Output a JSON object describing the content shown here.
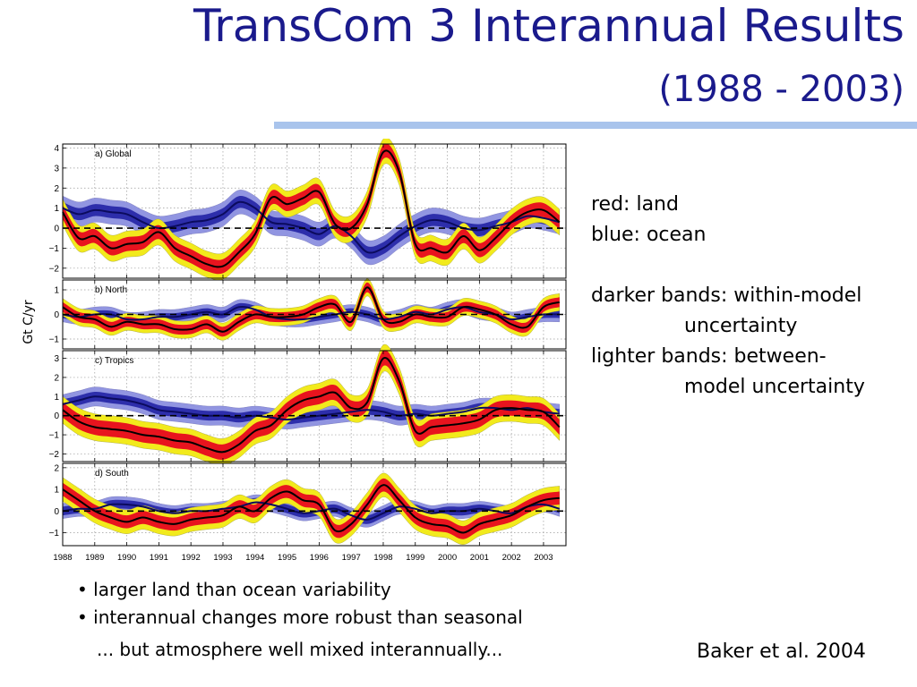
{
  "title": "TransCom 3 Interannual Results",
  "subtitle": "(1988 - 2003)",
  "ylabel": "Gt C/yr",
  "notes": {
    "red": "red: land",
    "blue": "blue: ocean",
    "darker_1": "darker bands: within-model",
    "darker_2": "uncertainty",
    "lighter_1": "lighter bands: between-",
    "lighter_2": "model uncertainty"
  },
  "bullets": [
    "• larger land than ocean variability",
    "• interannual changes more robust than seasonal"
  ],
  "footnote": "... but atmosphere well mixed interannually...",
  "citation": "Baker et al. 2004",
  "colors": {
    "land_line": "#000000",
    "land_inner": "#e8141e",
    "land_outer": "#f2ea1c",
    "ocean_line": "#0b0b5e",
    "ocean_inner": "#2828a8",
    "ocean_outer": "#8c90e0",
    "title": "#1a1a8c"
  },
  "chart_data": {
    "type": "line",
    "x_ticks": [
      "1988",
      "1989",
      "1990",
      "1991",
      "1992",
      "1993",
      "1994",
      "1995",
      "1996",
      "1997",
      "1998",
      "1999",
      "2000",
      "2001",
      "2002",
      "2003"
    ],
    "xlim": [
      1988,
      2003.7
    ],
    "grid": true,
    "x": [
      1988.0,
      1988.5,
      1989.0,
      1989.5,
      1990.0,
      1990.5,
      1991.0,
      1991.5,
      1992.0,
      1992.5,
      1993.0,
      1993.5,
      1994.0,
      1994.5,
      1995.0,
      1995.5,
      1996.0,
      1996.5,
      1997.0,
      1997.5,
      1998.0,
      1998.5,
      1999.0,
      1999.5,
      2000.0,
      2000.5,
      2001.0,
      2001.5,
      2002.0,
      2002.5,
      2003.0,
      2003.5
    ],
    "panels": [
      {
        "label": "a) Global",
        "ylim": [
          -2.5,
          4.2
        ],
        "yticks": [
          -2,
          -1,
          0,
          1,
          2,
          3,
          4
        ],
        "series": [
          {
            "name": "land",
            "values": [
              0.8,
              -0.5,
              -0.4,
              -1.0,
              -0.8,
              -0.7,
              -0.2,
              -1.0,
              -1.4,
              -1.8,
              -1.9,
              -1.2,
              -0.3,
              1.5,
              1.2,
              1.5,
              1.8,
              0.2,
              0.0,
              1.2,
              3.8,
              2.8,
              -0.8,
              -1.0,
              -1.2,
              -0.4,
              -1.1,
              -0.5,
              0.3,
              0.8,
              0.9,
              0.3
            ],
            "inner": 0.35,
            "outer": 0.65
          },
          {
            "name": "ocean",
            "values": [
              1.0,
              0.7,
              0.9,
              0.8,
              0.7,
              0.3,
              0.0,
              0.1,
              0.3,
              0.4,
              0.7,
              1.3,
              1.0,
              0.3,
              0.2,
              0.0,
              -0.3,
              0.1,
              -0.4,
              -1.2,
              -1.0,
              -0.4,
              0.1,
              0.4,
              0.3,
              0.0,
              -0.1,
              0.1,
              0.3,
              0.6,
              0.5,
              0.3
            ],
            "inner": 0.3,
            "outer": 0.6
          }
        ]
      },
      {
        "label": "b) North",
        "ylim": [
          -1.4,
          1.4
        ],
        "yticks": [
          -1,
          0,
          1
        ],
        "series": [
          {
            "name": "land",
            "values": [
              0.3,
              -0.1,
              -0.2,
              -0.5,
              -0.3,
              -0.4,
              -0.4,
              -0.6,
              -0.6,
              -0.4,
              -0.7,
              -0.3,
              0.0,
              -0.1,
              -0.1,
              0.0,
              0.3,
              0.4,
              -0.3,
              1.1,
              -0.2,
              -0.3,
              0.0,
              -0.1,
              -0.1,
              0.3,
              0.2,
              0.0,
              -0.4,
              -0.5,
              0.3,
              0.5
            ],
            "inner": 0.2,
            "outer": 0.35
          },
          {
            "name": "ocean",
            "values": [
              0.0,
              -0.1,
              0.0,
              0.0,
              -0.2,
              -0.2,
              -0.1,
              -0.1,
              0.0,
              0.1,
              0.0,
              0.3,
              0.2,
              -0.1,
              -0.2,
              -0.2,
              -0.1,
              0.0,
              0.1,
              0.0,
              -0.2,
              -0.1,
              0.1,
              0.0,
              0.2,
              0.3,
              0.1,
              0.0,
              -0.2,
              -0.1,
              0.0,
              0.0
            ],
            "inner": 0.15,
            "outer": 0.3
          }
        ]
      },
      {
        "label": "c) Tropics",
        "ylim": [
          -2.4,
          3.4
        ],
        "yticks": [
          -2,
          -1,
          0,
          1,
          2,
          3
        ],
        "series": [
          {
            "name": "land",
            "values": [
              0.3,
              -0.3,
              -0.6,
              -0.7,
              -0.8,
              -1.0,
              -1.1,
              -1.3,
              -1.4,
              -1.7,
              -1.9,
              -1.5,
              -0.8,
              -0.5,
              0.3,
              0.8,
              1.0,
              1.2,
              0.4,
              0.7,
              3.0,
              1.8,
              -0.8,
              -0.6,
              -0.5,
              -0.4,
              -0.2,
              0.3,
              0.4,
              0.3,
              0.2,
              -0.6
            ],
            "inner": 0.4,
            "outer": 0.7
          },
          {
            "name": "ocean",
            "values": [
              0.6,
              0.8,
              1.0,
              0.9,
              0.8,
              0.6,
              0.3,
              0.2,
              0.1,
              0.0,
              0.0,
              -0.1,
              0.0,
              -0.1,
              -0.2,
              -0.1,
              0.0,
              0.1,
              0.2,
              0.3,
              0.2,
              0.0,
              0.1,
              0.0,
              0.1,
              0.2,
              0.4,
              0.4,
              0.3,
              0.4,
              0.2,
              0.1
            ],
            "inner": 0.25,
            "outer": 0.5
          }
        ]
      },
      {
        "label": "d) South",
        "ylim": [
          -1.6,
          2.2
        ],
        "yticks": [
          -1,
          0,
          1,
          2
        ],
        "series": [
          {
            "name": "land",
            "values": [
              1.0,
              0.5,
              0.0,
              -0.3,
              -0.5,
              -0.3,
              -0.5,
              -0.6,
              -0.4,
              -0.3,
              -0.2,
              0.2,
              0.0,
              0.6,
              0.9,
              0.5,
              0.3,
              -0.9,
              -0.6,
              0.3,
              1.2,
              0.5,
              -0.3,
              -0.6,
              -0.7,
              -1.0,
              -0.6,
              -0.4,
              -0.2,
              0.2,
              0.5,
              0.6
            ],
            "inner": 0.3,
            "outer": 0.55
          },
          {
            "name": "ocean",
            "values": [
              0.0,
              0.1,
              0.1,
              0.3,
              0.3,
              0.2,
              0.0,
              -0.1,
              0.0,
              0.0,
              0.1,
              0.2,
              0.4,
              0.3,
              0.1,
              -0.1,
              0.0,
              0.1,
              -0.2,
              -0.4,
              -0.1,
              0.2,
              0.1,
              -0.1,
              0.0,
              0.0,
              0.1,
              0.0,
              -0.1,
              0.2,
              0.3,
              0.1
            ],
            "inner": 0.2,
            "outer": 0.35
          }
        ]
      }
    ]
  }
}
